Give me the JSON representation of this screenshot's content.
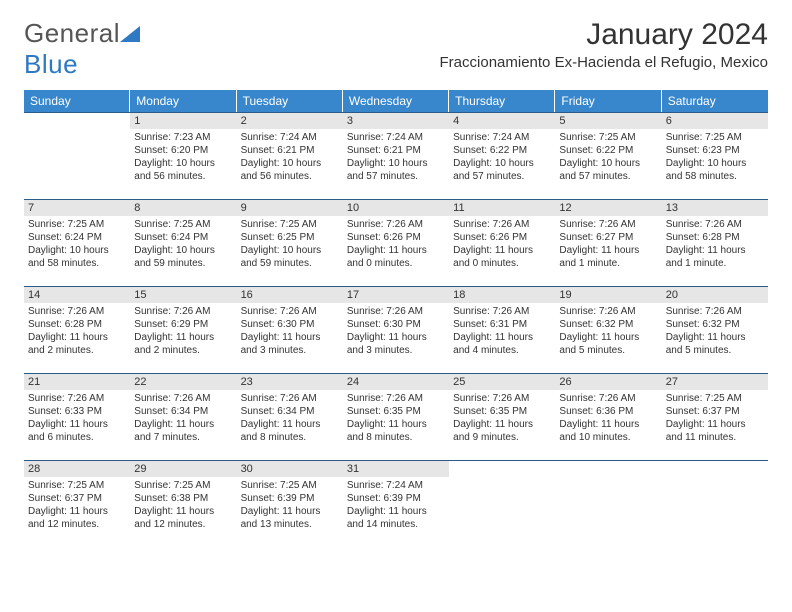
{
  "logo": {
    "text1": "General",
    "text2": "Blue"
  },
  "title": "January 2024",
  "location": "Fraccionamiento Ex-Hacienda el Refugio, Mexico",
  "colors": {
    "header_bg": "#3887cc",
    "header_text": "#ffffff",
    "rule": "#2a5a8a",
    "daynum_bg": "#e6e6e6",
    "body_text": "#333333",
    "logo_gray": "#555555",
    "logo_blue": "#2f78c3"
  },
  "fonts": {
    "title_size": 30,
    "location_size": 15,
    "header_size": 12,
    "cell_size": 10,
    "logo_size": 26
  },
  "day_headers": [
    "Sunday",
    "Monday",
    "Tuesday",
    "Wednesday",
    "Thursday",
    "Friday",
    "Saturday"
  ],
  "weeks": [
    [
      {
        "day": "",
        "lines": [
          "",
          "",
          "",
          ""
        ]
      },
      {
        "day": "1",
        "lines": [
          "Sunrise: 7:23 AM",
          "Sunset: 6:20 PM",
          "Daylight: 10 hours",
          "and 56 minutes."
        ]
      },
      {
        "day": "2",
        "lines": [
          "Sunrise: 7:24 AM",
          "Sunset: 6:21 PM",
          "Daylight: 10 hours",
          "and 56 minutes."
        ]
      },
      {
        "day": "3",
        "lines": [
          "Sunrise: 7:24 AM",
          "Sunset: 6:21 PM",
          "Daylight: 10 hours",
          "and 57 minutes."
        ]
      },
      {
        "day": "4",
        "lines": [
          "Sunrise: 7:24 AM",
          "Sunset: 6:22 PM",
          "Daylight: 10 hours",
          "and 57 minutes."
        ]
      },
      {
        "day": "5",
        "lines": [
          "Sunrise: 7:25 AM",
          "Sunset: 6:22 PM",
          "Daylight: 10 hours",
          "and 57 minutes."
        ]
      },
      {
        "day": "6",
        "lines": [
          "Sunrise: 7:25 AM",
          "Sunset: 6:23 PM",
          "Daylight: 10 hours",
          "and 58 minutes."
        ]
      }
    ],
    [
      {
        "day": "7",
        "lines": [
          "Sunrise: 7:25 AM",
          "Sunset: 6:24 PM",
          "Daylight: 10 hours",
          "and 58 minutes."
        ]
      },
      {
        "day": "8",
        "lines": [
          "Sunrise: 7:25 AM",
          "Sunset: 6:24 PM",
          "Daylight: 10 hours",
          "and 59 minutes."
        ]
      },
      {
        "day": "9",
        "lines": [
          "Sunrise: 7:25 AM",
          "Sunset: 6:25 PM",
          "Daylight: 10 hours",
          "and 59 minutes."
        ]
      },
      {
        "day": "10",
        "lines": [
          "Sunrise: 7:26 AM",
          "Sunset: 6:26 PM",
          "Daylight: 11 hours",
          "and 0 minutes."
        ]
      },
      {
        "day": "11",
        "lines": [
          "Sunrise: 7:26 AM",
          "Sunset: 6:26 PM",
          "Daylight: 11 hours",
          "and 0 minutes."
        ]
      },
      {
        "day": "12",
        "lines": [
          "Sunrise: 7:26 AM",
          "Sunset: 6:27 PM",
          "Daylight: 11 hours",
          "and 1 minute."
        ]
      },
      {
        "day": "13",
        "lines": [
          "Sunrise: 7:26 AM",
          "Sunset: 6:28 PM",
          "Daylight: 11 hours",
          "and 1 minute."
        ]
      }
    ],
    [
      {
        "day": "14",
        "lines": [
          "Sunrise: 7:26 AM",
          "Sunset: 6:28 PM",
          "Daylight: 11 hours",
          "and 2 minutes."
        ]
      },
      {
        "day": "15",
        "lines": [
          "Sunrise: 7:26 AM",
          "Sunset: 6:29 PM",
          "Daylight: 11 hours",
          "and 2 minutes."
        ]
      },
      {
        "day": "16",
        "lines": [
          "Sunrise: 7:26 AM",
          "Sunset: 6:30 PM",
          "Daylight: 11 hours",
          "and 3 minutes."
        ]
      },
      {
        "day": "17",
        "lines": [
          "Sunrise: 7:26 AM",
          "Sunset: 6:30 PM",
          "Daylight: 11 hours",
          "and 3 minutes."
        ]
      },
      {
        "day": "18",
        "lines": [
          "Sunrise: 7:26 AM",
          "Sunset: 6:31 PM",
          "Daylight: 11 hours",
          "and 4 minutes."
        ]
      },
      {
        "day": "19",
        "lines": [
          "Sunrise: 7:26 AM",
          "Sunset: 6:32 PM",
          "Daylight: 11 hours",
          "and 5 minutes."
        ]
      },
      {
        "day": "20",
        "lines": [
          "Sunrise: 7:26 AM",
          "Sunset: 6:32 PM",
          "Daylight: 11 hours",
          "and 5 minutes."
        ]
      }
    ],
    [
      {
        "day": "21",
        "lines": [
          "Sunrise: 7:26 AM",
          "Sunset: 6:33 PM",
          "Daylight: 11 hours",
          "and 6 minutes."
        ]
      },
      {
        "day": "22",
        "lines": [
          "Sunrise: 7:26 AM",
          "Sunset: 6:34 PM",
          "Daylight: 11 hours",
          "and 7 minutes."
        ]
      },
      {
        "day": "23",
        "lines": [
          "Sunrise: 7:26 AM",
          "Sunset: 6:34 PM",
          "Daylight: 11 hours",
          "and 8 minutes."
        ]
      },
      {
        "day": "24",
        "lines": [
          "Sunrise: 7:26 AM",
          "Sunset: 6:35 PM",
          "Daylight: 11 hours",
          "and 8 minutes."
        ]
      },
      {
        "day": "25",
        "lines": [
          "Sunrise: 7:26 AM",
          "Sunset: 6:35 PM",
          "Daylight: 11 hours",
          "and 9 minutes."
        ]
      },
      {
        "day": "26",
        "lines": [
          "Sunrise: 7:26 AM",
          "Sunset: 6:36 PM",
          "Daylight: 11 hours",
          "and 10 minutes."
        ]
      },
      {
        "day": "27",
        "lines": [
          "Sunrise: 7:25 AM",
          "Sunset: 6:37 PM",
          "Daylight: 11 hours",
          "and 11 minutes."
        ]
      }
    ],
    [
      {
        "day": "28",
        "lines": [
          "Sunrise: 7:25 AM",
          "Sunset: 6:37 PM",
          "Daylight: 11 hours",
          "and 12 minutes."
        ]
      },
      {
        "day": "29",
        "lines": [
          "Sunrise: 7:25 AM",
          "Sunset: 6:38 PM",
          "Daylight: 11 hours",
          "and 12 minutes."
        ]
      },
      {
        "day": "30",
        "lines": [
          "Sunrise: 7:25 AM",
          "Sunset: 6:39 PM",
          "Daylight: 11 hours",
          "and 13 minutes."
        ]
      },
      {
        "day": "31",
        "lines": [
          "Sunrise: 7:24 AM",
          "Sunset: 6:39 PM",
          "Daylight: 11 hours",
          "and 14 minutes."
        ]
      },
      {
        "day": "",
        "lines": [
          "",
          "",
          "",
          ""
        ]
      },
      {
        "day": "",
        "lines": [
          "",
          "",
          "",
          ""
        ]
      },
      {
        "day": "",
        "lines": [
          "",
          "",
          "",
          ""
        ]
      }
    ]
  ]
}
